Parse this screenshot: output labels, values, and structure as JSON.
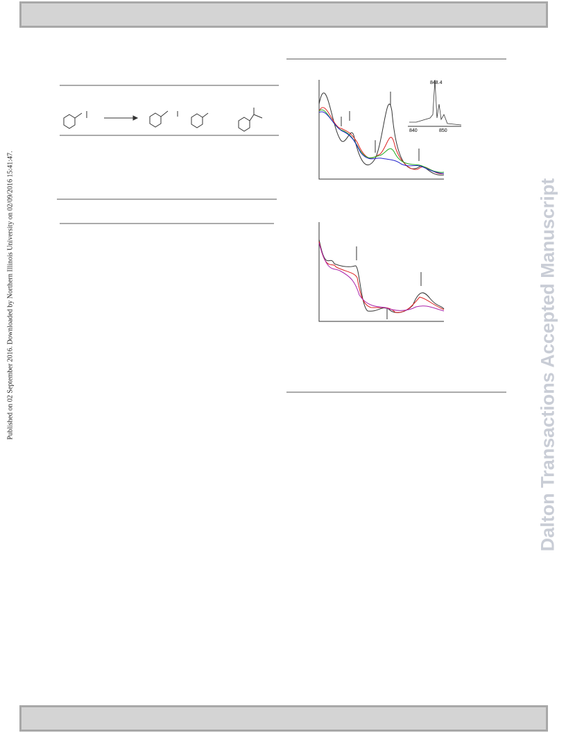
{
  "side_note": "Published on 02 September 2016. Downloaded by Northern Illinois University on 02/09/2016 15:41:47.",
  "watermark": "Dalton Transactions Accepted Manuscript",
  "figure": {
    "inset_peak_label": "848.4",
    "inset_axis_labels": [
      "840",
      "850"
    ]
  }
}
